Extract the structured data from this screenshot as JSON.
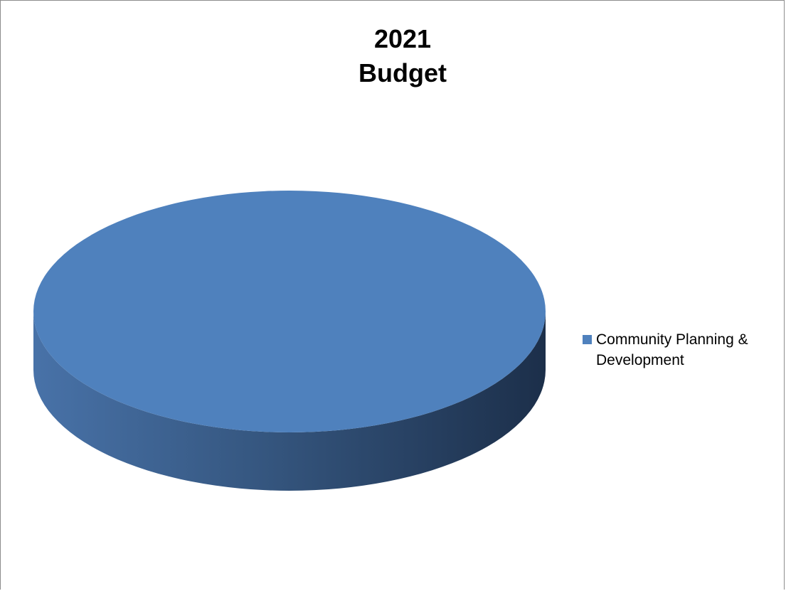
{
  "chart_data": {
    "type": "pie",
    "title_lines": [
      "2021",
      "Budget"
    ],
    "categories": [
      "Community Planning & Development"
    ],
    "values": [
      100
    ],
    "colors": [
      "#4F81BD"
    ],
    "style": "3d",
    "legend_position": "right"
  }
}
